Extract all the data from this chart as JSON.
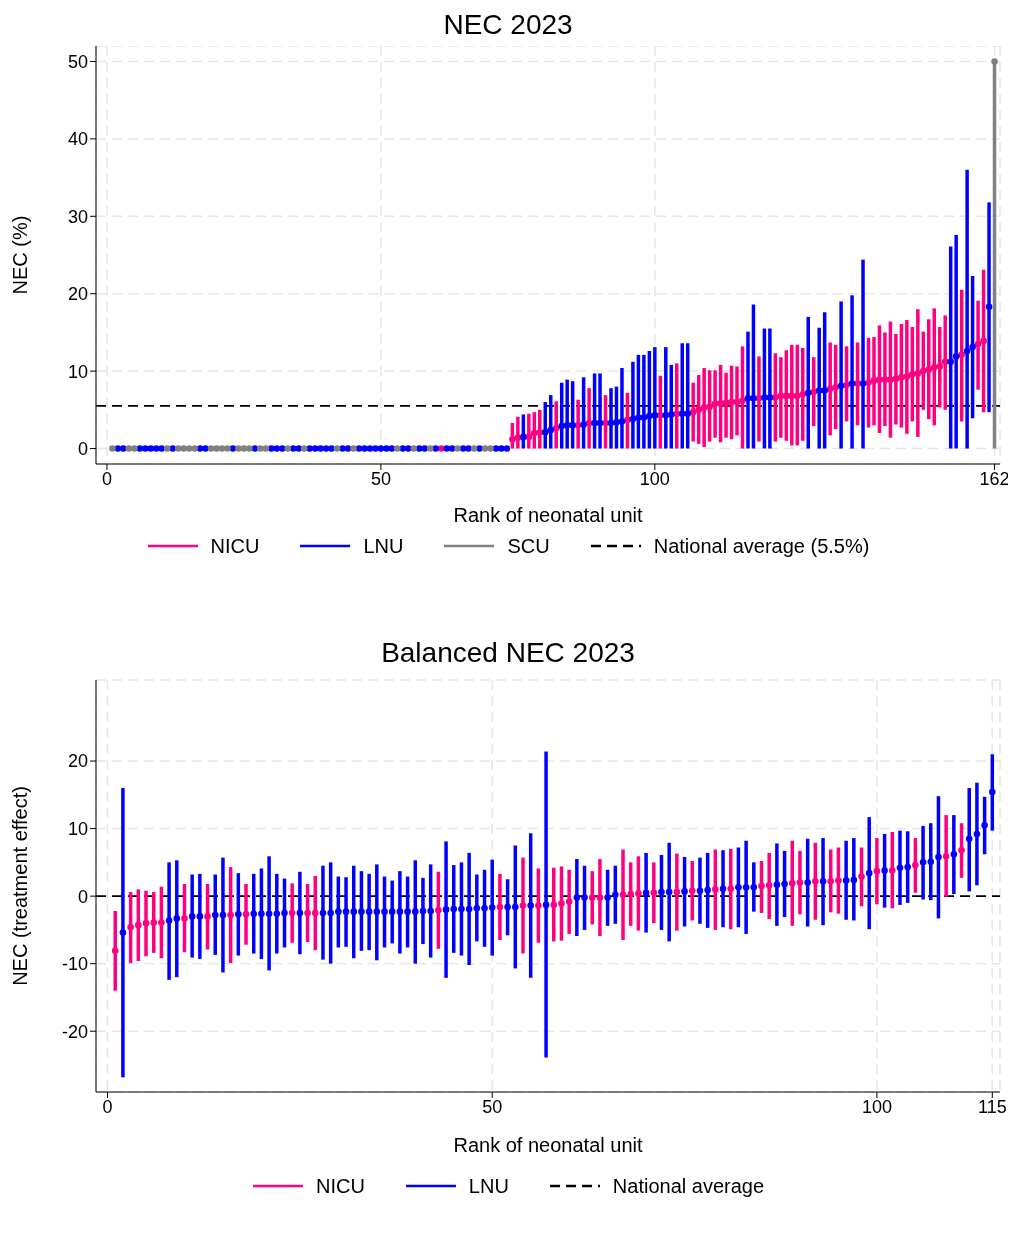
{
  "chart_data": [
    {
      "type": "scatter",
      "title": "NEC 2023",
      "xlabel": "Rank of neonatal unit",
      "ylabel": "NEC (%)",
      "xlim": [
        -2,
        163
      ],
      "xticks": [
        0,
        50,
        100,
        162
      ],
      "ylim": [
        -2,
        52
      ],
      "yticks": [
        0,
        10,
        20,
        30,
        40,
        50
      ],
      "grid": true,
      "legend": "bottom",
      "marker": "circle",
      "ref_lines": [
        {
          "axis": "y",
          "value": 5.5,
          "label": "National average (5.5%)",
          "color": "#000000",
          "line_style": "dashed"
        }
      ],
      "series": [
        {
          "name": "NICU",
          "color": "#ff0080",
          "x": [
            61,
            74,
            75,
            77,
            78,
            79,
            82,
            86,
            88,
            91,
            95,
            101,
            104,
            107,
            108,
            109,
            110,
            111,
            112,
            113,
            114,
            115,
            116,
            119,
            122,
            123,
            124,
            125,
            126,
            127,
            129,
            132,
            133,
            135,
            137,
            139,
            140,
            141,
            142,
            143,
            144,
            145,
            146,
            147,
            148,
            149,
            150,
            151,
            152,
            153,
            156,
            159,
            160
          ],
          "values": [
            0,
            1.2,
            1.4,
            1.5,
            2.0,
            2.1,
            2.6,
            3.0,
            3.3,
            3.3,
            3.7,
            4.3,
            4.5,
            4.7,
            5.0,
            5.3,
            5.4,
            5.8,
            5.8,
            5.9,
            6.0,
            6.0,
            6.2,
            6.5,
            6.6,
            6.8,
            6.8,
            6.8,
            6.8,
            7.0,
            7.3,
            7.7,
            7.9,
            8.2,
            8.4,
            8.5,
            8.8,
            8.9,
            8.9,
            8.9,
            9.0,
            9.2,
            9.3,
            9.6,
            9.7,
            10.0,
            10.2,
            10.5,
            10.6,
            11.2,
            12.1,
            13.5,
            13.9
          ],
          "errors": [
            null,
            [
              0,
              3.3
            ],
            [
              0,
              4.1
            ],
            [
              0,
              4.5
            ],
            [
              0,
              4.7
            ],
            [
              0,
              5.0
            ],
            [
              0,
              6.1
            ],
            [
              0,
              6.3
            ],
            [
              0,
              7.8
            ],
            [
              0,
              6.9
            ],
            [
              0,
              7.2
            ],
            [
              0,
              9.4
            ],
            [
              0,
              11.0
            ],
            [
              0.9,
              8.5
            ],
            [
              0.6,
              9.5
            ],
            [
              0.2,
              10.4
            ],
            [
              0.9,
              10.1
            ],
            [
              1.4,
              10.1
            ],
            [
              0.8,
              10.8
            ],
            [
              1.4,
              9.8
            ],
            [
              1.2,
              10.7
            ],
            [
              1.7,
              10.6
            ],
            [
              0,
              13.2
            ],
            [
              0.9,
              11.9
            ],
            [
              0.9,
              12.3
            ],
            [
              1.4,
              11.8
            ],
            [
              1.0,
              12.7
            ],
            [
              0.4,
              13.4
            ],
            [
              0.4,
              13.4
            ],
            [
              1.0,
              13.0
            ],
            [
              2.9,
              11.8
            ],
            [
              1.7,
              13.7
            ],
            [
              2.5,
              13.4
            ],
            [
              3.5,
              13.2
            ],
            [
              3.0,
              13.7
            ],
            [
              2.7,
              14.3
            ],
            [
              3.0,
              14.4
            ],
            [
              2.0,
              15.9
            ],
            [
              2.9,
              15.0
            ],
            [
              1.4,
              16.4
            ],
            [
              3.1,
              14.8
            ],
            [
              2.7,
              16.1
            ],
            [
              1.9,
              16.6
            ],
            [
              3.5,
              15.7
            ],
            [
              1.5,
              18.0
            ],
            [
              5.0,
              15.1
            ],
            [
              3.8,
              16.7
            ],
            [
              3.0,
              18.1
            ],
            [
              5.3,
              15.7
            ],
            [
              5.0,
              17.2
            ],
            [
              3.5,
              20.5
            ],
            [
              7.6,
              19.1
            ],
            [
              4.7,
              23.1
            ]
          ]
        },
        {
          "name": "LNU",
          "color": "#0000ff",
          "x": [
            2,
            3,
            6,
            7,
            8,
            9,
            10,
            12,
            17,
            18,
            23,
            27,
            30,
            31,
            32,
            34,
            35,
            37,
            38,
            39,
            40,
            41,
            43,
            44,
            46,
            47,
            48,
            49,
            50,
            51,
            52,
            54,
            55,
            57,
            58,
            60,
            62,
            63,
            65,
            66,
            68,
            71,
            72,
            73,
            76,
            80,
            81,
            83,
            84,
            85,
            87,
            89,
            90,
            92,
            93,
            94,
            96,
            97,
            98,
            99,
            100,
            102,
            103,
            105,
            106,
            117,
            118,
            120,
            121,
            128,
            130,
            131,
            134,
            136,
            138,
            154,
            155,
            157,
            158,
            161
          ],
          "values": [
            0,
            0,
            0,
            0,
            0,
            0,
            0,
            0,
            0,
            0,
            0,
            0,
            0,
            0,
            0,
            0,
            0,
            0,
            0,
            0,
            0,
            0,
            0,
            0,
            0,
            0,
            0,
            0,
            0,
            0,
            0,
            0,
            0,
            0,
            0,
            0,
            0,
            0,
            0,
            0,
            0,
            0,
            0,
            0,
            1.5,
            2.1,
            2.4,
            2.9,
            3.0,
            3.0,
            3.1,
            3.3,
            3.3,
            3.3,
            3.4,
            3.5,
            3.8,
            4.0,
            4.0,
            4.2,
            4.3,
            4.3,
            4.4,
            4.5,
            4.5,
            6.5,
            6.5,
            6.6,
            6.6,
            7.2,
            7.5,
            7.5,
            8.1,
            8.4,
            8.4,
            11.2,
            11.9,
            12.6,
            13.1,
            18.3
          ],
          "errors": [
            null,
            null,
            null,
            null,
            null,
            null,
            null,
            null,
            null,
            null,
            null,
            null,
            null,
            null,
            null,
            null,
            null,
            null,
            null,
            null,
            null,
            null,
            null,
            null,
            null,
            null,
            null,
            null,
            null,
            null,
            null,
            null,
            null,
            null,
            null,
            null,
            null,
            null,
            null,
            null,
            null,
            null,
            null,
            null,
            [
              0,
              4.4
            ],
            [
              0,
              6.0
            ],
            [
              0,
              6.9
            ],
            [
              0,
              8.5
            ],
            [
              0,
              8.9
            ],
            [
              0,
              8.7
            ],
            [
              0,
              9.2
            ],
            [
              0,
              9.7
            ],
            [
              0,
              9.7
            ],
            [
              0,
              7.8
            ],
            [
              0,
              8.0
            ],
            [
              0,
              10.4
            ],
            [
              0,
              11.2
            ],
            [
              0,
              12.1
            ],
            [
              0,
              12.1
            ],
            [
              0,
              12.6
            ],
            [
              0,
              13.1
            ],
            [
              0,
              13.1
            ],
            [
              0,
              10.8
            ],
            [
              0,
              13.6
            ],
            [
              0,
              13.6
            ],
            [
              0,
              15.1
            ],
            [
              0,
              18.6
            ],
            [
              0,
              15.5
            ],
            [
              0,
              15.5
            ],
            [
              0,
              17.0
            ],
            [
              0,
              15.6
            ],
            [
              0,
              17.6
            ],
            [
              0,
              19.0
            ],
            [
              0,
              19.8
            ],
            [
              0,
              24.4
            ],
            [
              0,
              26.1
            ],
            [
              0,
              27.6
            ],
            [
              0,
              36.0
            ],
            [
              3.9,
              22.3
            ],
            [
              4.7,
              31.8
            ]
          ]
        },
        {
          "name": "SCU",
          "color": "#808080",
          "x": [
            1,
            4,
            5,
            11,
            13,
            14,
            15,
            16,
            19,
            20,
            21,
            22,
            24,
            25,
            26,
            28,
            29,
            33,
            36,
            42,
            45,
            53,
            56,
            59,
            64,
            67,
            69,
            70,
            162
          ],
          "values": [
            0,
            0,
            0,
            0,
            0,
            0,
            0,
            0,
            0,
            0,
            0,
            0,
            0,
            0,
            0,
            0,
            0,
            0,
            0,
            0,
            0,
            0,
            0,
            0,
            0,
            0,
            0,
            0,
            50
          ],
          "errors": [
            null,
            null,
            null,
            null,
            null,
            null,
            null,
            null,
            null,
            null,
            null,
            null,
            null,
            null,
            null,
            null,
            null,
            null,
            null,
            null,
            null,
            null,
            null,
            null,
            null,
            null,
            null,
            null,
            [
              0,
              50
            ]
          ]
        }
      ]
    },
    {
      "type": "scatter",
      "title": "Balanced NEC 2023",
      "xlabel": "Rank of neonatal unit",
      "ylabel": "NEC (treatment effect)",
      "xlim": [
        -1.5,
        116
      ],
      "xticks": [
        0,
        50,
        100,
        115
      ],
      "ylim": [
        -29,
        32
      ],
      "yticks": [
        -20,
        -10,
        0,
        10,
        20
      ],
      "grid": true,
      "legend": "bottom",
      "marker": "circle",
      "ref_lines": [
        {
          "axis": "y",
          "value": 0,
          "label": "National average",
          "color": "#000000",
          "line_style": "dashed"
        }
      ],
      "series": [
        {
          "name": "NICU",
          "color": "#ff0080",
          "x": [
            1,
            3,
            4,
            5,
            6,
            7,
            10,
            13,
            16,
            18,
            24,
            26,
            27,
            43,
            51,
            54,
            56,
            58,
            59,
            60,
            63,
            64,
            67,
            68,
            69,
            71,
            74,
            76,
            79,
            81,
            85,
            86,
            89,
            90,
            92,
            94,
            95,
            98,
            100,
            102,
            105,
            109,
            111
          ],
          "values": [
            -8.1,
            -4.6,
            -4.3,
            -4.0,
            -3.9,
            -3.9,
            -3.3,
            -3.0,
            -2.8,
            -2.7,
            -2.5,
            -2.5,
            -2.5,
            -2.1,
            -1.6,
            -1.4,
            -1.4,
            -1.3,
            -1.1,
            -0.8,
            -0.2,
            -0.2,
            0.2,
            0.3,
            0.4,
            0.5,
            0.6,
            0.8,
            1.0,
            1.1,
            1.5,
            1.6,
            1.9,
            2.0,
            2.2,
            2.2,
            2.3,
            2.9,
            3.7,
            3.8,
            4.6,
            5.9,
            6.8
          ],
          "errors": [
            [
              -14.0,
              -2.2
            ],
            [
              -9.9,
              0.6
            ],
            [
              -9.6,
              1.0
            ],
            [
              -8.9,
              0.8
            ],
            [
              -8.4,
              0.6
            ],
            [
              -9.2,
              1.4
            ],
            [
              -8.3,
              1.8
            ],
            [
              -7.9,
              1.8
            ],
            [
              -9.9,
              4.3
            ],
            [
              -7.2,
              1.8
            ],
            [
              -6.9,
              1.9
            ],
            [
              -6.8,
              1.8
            ],
            [
              -8.0,
              3.0
            ],
            [
              -7.8,
              3.6
            ],
            [
              -6.5,
              3.3
            ],
            [
              -8.5,
              5.7
            ],
            [
              -6.9,
              4.1
            ],
            [
              -6.7,
              4.2
            ],
            [
              -6.6,
              4.4
            ],
            [
              -5.6,
              3.9
            ],
            [
              -4.2,
              3.7
            ],
            [
              -5.9,
              5.5
            ],
            [
              -6.5,
              6.9
            ],
            [
              -4.4,
              5.0
            ],
            [
              -5.1,
              5.9
            ],
            [
              -4.0,
              5.0
            ],
            [
              -5.1,
              6.3
            ],
            [
              -3.6,
              5.2
            ],
            [
              -5.0,
              6.9
            ],
            [
              -4.9,
              7.0
            ],
            [
              -2.5,
              5.2
            ],
            [
              -3.4,
              6.4
            ],
            [
              -4.4,
              8.2
            ],
            [
              -2.7,
              6.7
            ],
            [
              -3.5,
              7.9
            ],
            [
              -2.4,
              6.9
            ],
            [
              -2.6,
              7.2
            ],
            [
              -1.5,
              7.2
            ],
            [
              -1.2,
              8.6
            ],
            [
              -1.8,
              9.5
            ],
            [
              0.5,
              8.6
            ],
            [
              -0.1,
              12.0
            ],
            [
              2.7,
              10.8
            ]
          ]
        },
        {
          "name": "LNU",
          "color": "#0000ff",
          "x": [
            2,
            8,
            9,
            11,
            12,
            14,
            15,
            17,
            19,
            20,
            21,
            22,
            23,
            25,
            28,
            29,
            30,
            31,
            32,
            33,
            34,
            35,
            36,
            37,
            38,
            39,
            40,
            41,
            42,
            44,
            45,
            46,
            47,
            48,
            49,
            50,
            52,
            53,
            55,
            57,
            61,
            62,
            65,
            66,
            70,
            72,
            73,
            75,
            77,
            78,
            80,
            82,
            83,
            84,
            87,
            88,
            91,
            93,
            96,
            97,
            99,
            101,
            103,
            104,
            106,
            107,
            108,
            110,
            112,
            113,
            114,
            115
          ],
          "values": [
            -5.4,
            -3.6,
            -3.3,
            -3.0,
            -3.0,
            -2.8,
            -2.8,
            -2.7,
            -2.6,
            -2.6,
            -2.6,
            -2.6,
            -2.5,
            -2.5,
            -2.5,
            -2.5,
            -2.3,
            -2.3,
            -2.3,
            -2.3,
            -2.3,
            -2.3,
            -2.3,
            -2.3,
            -2.3,
            -2.3,
            -2.3,
            -2.2,
            -2.2,
            -2.0,
            -1.9,
            -1.9,
            -1.9,
            -1.8,
            -1.8,
            -1.7,
            -1.6,
            -1.6,
            -1.4,
            -1.3,
            -0.2,
            -0.2,
            -0.2,
            0.2,
            0.5,
            0.6,
            0.6,
            0.7,
            0.8,
            0.9,
            1.1,
            1.3,
            1.3,
            1.3,
            1.7,
            1.8,
            2.0,
            2.2,
            2.3,
            2.4,
            3.4,
            3.8,
            4.2,
            4.3,
            5.0,
            5.1,
            5.8,
            6.2,
            8.5,
            9.2,
            10.5,
            15.4
          ],
          "errors": [
            [
              -26.8,
              16.0
            ],
            [
              -12.4,
              5.0
            ],
            [
              -12.0,
              5.3
            ],
            [
              -9.1,
              3.2
            ],
            [
              -9.3,
              3.3
            ],
            [
              -8.7,
              3.2
            ],
            [
              -11.3,
              5.7
            ],
            [
              -8.8,
              3.4
            ],
            [
              -8.5,
              3.3
            ],
            [
              -9.3,
              4.1
            ],
            [
              -11.0,
              5.9
            ],
            [
              -8.5,
              3.3
            ],
            [
              -7.6,
              2.6
            ],
            [
              -8.6,
              3.6
            ],
            [
              -9.4,
              4.5
            ],
            [
              -10.0,
              5.0
            ],
            [
              -7.6,
              2.9
            ],
            [
              -7.5,
              2.8
            ],
            [
              -9.2,
              4.5
            ],
            [
              -8.1,
              3.7
            ],
            [
              -8.0,
              3.3
            ],
            [
              -9.5,
              4.7
            ],
            [
              -7.6,
              2.9
            ],
            [
              -7.0,
              2.3
            ],
            [
              -8.5,
              3.7
            ],
            [
              -7.6,
              2.9
            ],
            [
              -10.0,
              5.3
            ],
            [
              -7.1,
              2.7
            ],
            [
              -9.1,
              4.7
            ],
            [
              -12.1,
              8.1
            ],
            [
              -8.4,
              4.6
            ],
            [
              -8.8,
              5.0
            ],
            [
              -10.2,
              6.4
            ],
            [
              -6.7,
              3.2
            ],
            [
              -7.5,
              3.9
            ],
            [
              -8.8,
              5.4
            ],
            [
              -5.8,
              2.5
            ],
            [
              -10.7,
              7.5
            ],
            [
              -12.1,
              9.3
            ],
            [
              -23.9,
              21.4
            ],
            [
              -5.9,
              5.5
            ],
            [
              -5.0,
              4.5
            ],
            [
              -4.4,
              3.9
            ],
            [
              -4.1,
              4.5
            ],
            [
              -5.4,
              6.4
            ],
            [
              -5.0,
              6.1
            ],
            [
              -6.7,
              7.9
            ],
            [
              -4.5,
              5.8
            ],
            [
              -4.1,
              5.7
            ],
            [
              -4.7,
              6.4
            ],
            [
              -4.6,
              6.8
            ],
            [
              -4.6,
              7.2
            ],
            [
              -5.6,
              8.2
            ],
            [
              -2.3,
              5.0
            ],
            [
              -4.4,
              7.8
            ],
            [
              -3.1,
              6.7
            ],
            [
              -4.5,
              8.5
            ],
            [
              -4.3,
              8.6
            ],
            [
              -3.5,
              8.2
            ],
            [
              -3.6,
              8.6
            ],
            [
              -4.9,
              11.7
            ],
            [
              -1.7,
              9.2
            ],
            [
              -1.3,
              9.7
            ],
            [
              -1.0,
              9.6
            ],
            [
              -0.5,
              10.4
            ],
            [
              -0.6,
              10.8
            ],
            [
              -3.3,
              14.8
            ],
            [
              0.3,
              12.0
            ],
            [
              0.7,
              16.0
            ],
            [
              1.6,
              16.8
            ],
            [
              6.2,
              14.7
            ],
            [
              9.7,
              21.0
            ]
          ]
        }
      ]
    }
  ]
}
